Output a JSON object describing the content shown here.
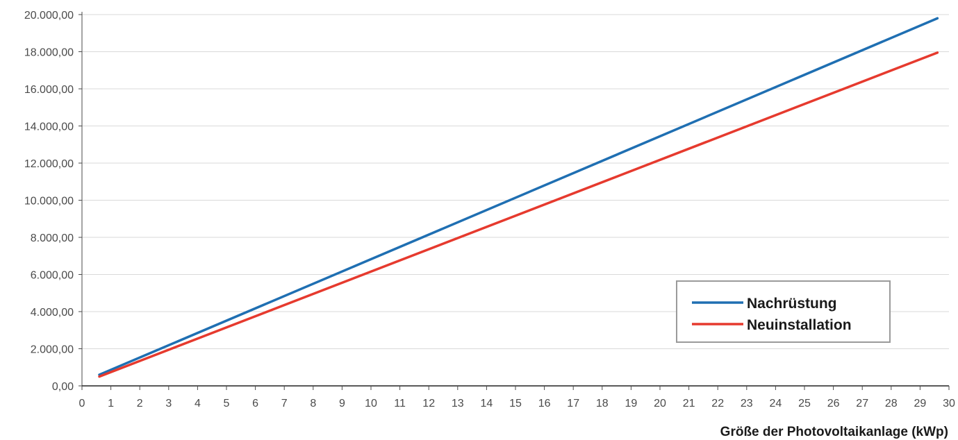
{
  "chart_data": {
    "type": "line",
    "title": "",
    "xlabel": "Größe der Photovoltaikanlage (kWp)",
    "ylabel": "",
    "xlim": [
      0,
      30
    ],
    "ylim": [
      0,
      20000
    ],
    "x_ticks": [
      0,
      1,
      2,
      3,
      4,
      5,
      6,
      7,
      8,
      9,
      10,
      11,
      12,
      13,
      14,
      15,
      16,
      17,
      18,
      19,
      20,
      21,
      22,
      23,
      24,
      25,
      26,
      27,
      28,
      29,
      30
    ],
    "x_tick_labels": [
      "0",
      "1",
      "2",
      "3",
      "4",
      "5",
      "6",
      "7",
      "8",
      "9",
      "10",
      "11",
      "12",
      "13",
      "14",
      "15",
      "16",
      "17",
      "18",
      "19",
      "20",
      "21",
      "22",
      "23",
      "24",
      "25",
      "26",
      "27",
      "28",
      "29",
      "30"
    ],
    "y_ticks": [
      0,
      2000,
      4000,
      6000,
      8000,
      10000,
      12000,
      14000,
      16000,
      18000,
      20000
    ],
    "y_tick_labels": [
      "0,00",
      "2.000,00",
      "4.000,00",
      "6.000,00",
      "8.000,00",
      "10.000,00",
      "12.000,00",
      "14.000,00",
      "16.000,00",
      "18.000,00",
      "20.000,00"
    ],
    "grid": "horizontal",
    "legend_position": "bottom-right",
    "series": [
      {
        "name": "Nachrüstung",
        "color": "#1f6fb2",
        "x": [
          0.6,
          29.6
        ],
        "y": [
          600,
          19800
        ]
      },
      {
        "name": "Neuinstallation",
        "color": "#e63a2e",
        "x": [
          0.6,
          29.6
        ],
        "y": [
          500,
          17950
        ]
      }
    ],
    "colors": {
      "grid": "#d9d9d9",
      "axis": "#4a4a4a",
      "legend_border": "#9a9a9a"
    }
  }
}
